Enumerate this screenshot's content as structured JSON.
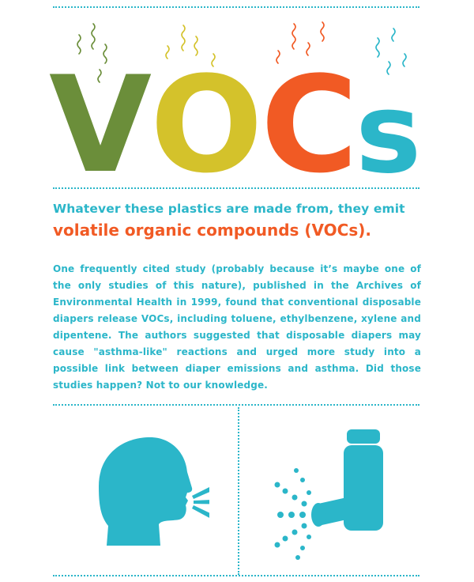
{
  "hero": {
    "letters": [
      {
        "char": "V",
        "color": "#6b8e3a"
      },
      {
        "char": "O",
        "color": "#d4c22b"
      },
      {
        "char": "C",
        "color": "#f15a24"
      },
      {
        "char": "s",
        "color": "#2bb6c9"
      }
    ],
    "fume_colors": [
      "#6b8e3a",
      "#d4c22b",
      "#f15a24",
      "#2bb6c9"
    ]
  },
  "headline": {
    "line1": "Whatever these plastics are made from, they emit",
    "line2": "volatile organic compounds (VOCs)."
  },
  "body": "One frequently cited study (probably because it’s maybe one of the only studies of this nature), published in the Archives of Environmental Health in 1999, found that conventional disposable diapers release VOCs, including toluene, ethylbenzene, xylene and dipentene. The authors suggested that disposable diapers may cause \"asthma-like\" reactions and urged more study into a possible link between diaper emissions and asthma. Did those studies happen? Not to our knowledge.",
  "icons": {
    "left": "coughing-head-icon",
    "right": "inhaler-icon",
    "color": "#2bb6c9"
  }
}
